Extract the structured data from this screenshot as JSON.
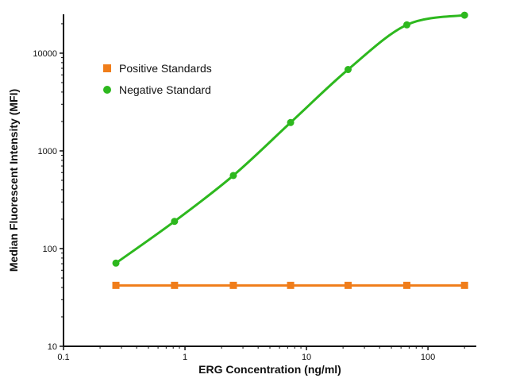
{
  "chart_data": {
    "type": "line",
    "title": "",
    "xlabel": "ERG Concentration (ng/ml)",
    "ylabel": "Median Fluorescent Intensity (MFI)",
    "x_scale": "log",
    "y_scale": "log",
    "xlim": [
      0.1,
      250
    ],
    "ylim": [
      10,
      25000
    ],
    "grid": false,
    "legend_position": "top-left",
    "x_ticks": [
      {
        "value": 0.1,
        "label": "0.1"
      },
      {
        "value": 1,
        "label": "1"
      },
      {
        "value": 10,
        "label": "10"
      },
      {
        "value": 100,
        "label": "100"
      }
    ],
    "y_ticks": [
      {
        "value": 10,
        "label": "10"
      },
      {
        "value": 100,
        "label": "100"
      },
      {
        "value": 1000,
        "label": "1000"
      },
      {
        "value": 10000,
        "label": "10000"
      }
    ],
    "series": [
      {
        "name": "Positive Standards",
        "color": "#f07d1a",
        "marker": "square",
        "x": [
          0.27,
          0.82,
          2.5,
          7.4,
          22,
          67,
          200
        ],
        "y": [
          42,
          42,
          42,
          42,
          42,
          42,
          42
        ]
      },
      {
        "name": "Negative Standard",
        "color": "#2db81e",
        "marker": "circle",
        "x": [
          0.27,
          0.82,
          2.5,
          7.4,
          22,
          67,
          200
        ],
        "y": [
          71,
          190,
          560,
          1950,
          6800,
          19500,
          24500
        ]
      }
    ]
  }
}
